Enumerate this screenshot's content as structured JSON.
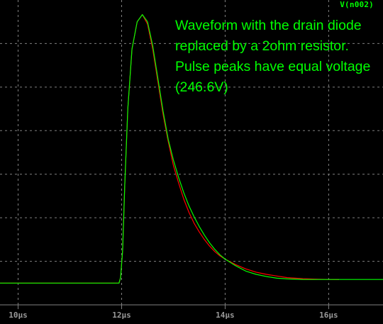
{
  "trace_label": "V(n002)",
  "annotation": [
    "Waveform with the drain diode",
    "replaced by a 2ohm resistor.",
    "Pulse peaks have equal voltage",
    "(246.6V)"
  ],
  "colors": {
    "background": "#000000",
    "grid": "#808080",
    "series_green": "#00ff00",
    "series_red": "#ff0000",
    "label_color": "#9a9a9a"
  },
  "chart_data": {
    "type": "line",
    "title": "",
    "xlabel": "",
    "ylabel": "",
    "x_unit": "µs",
    "xlim": [
      9.65,
      17.05
    ],
    "ylim": [
      -20,
      260
    ],
    "grid": true,
    "x_ticks": [
      10,
      12,
      14,
      16
    ],
    "x_tick_labels": [
      "10µs",
      "12µs",
      "14µs",
      "16µs"
    ],
    "series": [
      {
        "color": "#ff0000",
        "x": [
          9.65,
          11.95,
          11.98,
          12.02,
          12.06,
          12.12,
          12.2,
          12.3,
          12.4,
          12.5,
          12.6,
          12.7,
          12.8,
          12.9,
          13.0,
          13.1,
          13.2,
          13.3,
          13.4,
          13.5,
          13.6,
          13.7,
          13.8,
          13.9,
          14.0,
          14.2,
          14.4,
          14.6,
          14.8,
          15.0,
          15.2,
          15.5,
          15.8,
          16.0,
          16.2
        ],
        "y": [
          0,
          0,
          5,
          30,
          90,
          160,
          215,
          240,
          246.6,
          238,
          215,
          185,
          155,
          130,
          108,
          92,
          77,
          65,
          55,
          47,
          40,
          34,
          29,
          25,
          22,
          17,
          13,
          10,
          8,
          6.5,
          5,
          4,
          3.5,
          3.3,
          3.2
        ]
      },
      {
        "color": "#00ff00",
        "x": [
          9.65,
          11.95,
          11.98,
          12.02,
          12.06,
          12.12,
          12.2,
          12.3,
          12.4,
          12.5,
          12.6,
          12.7,
          12.8,
          12.9,
          13.0,
          13.1,
          13.2,
          13.3,
          13.4,
          13.5,
          13.6,
          13.7,
          13.8,
          13.9,
          14.0,
          14.2,
          14.4,
          14.6,
          14.8,
          15.0,
          15.2,
          15.5,
          15.8,
          16.0,
          16.5,
          17.05
        ],
        "y": [
          0,
          0,
          5,
          30,
          90,
          160,
          215,
          240,
          246.6,
          240,
          218,
          188,
          158,
          132,
          113,
          97,
          83,
          71,
          61,
          52,
          44,
          37,
          31,
          26,
          22,
          16,
          11,
          8,
          6,
          4.5,
          3.8,
          3.4,
          3.3,
          3.3,
          3.3,
          3.3
        ]
      }
    ]
  }
}
